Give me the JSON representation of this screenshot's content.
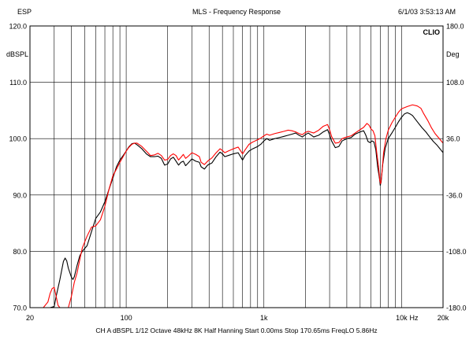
{
  "header": {
    "left": "ESP",
    "title": "MLS - Frequency Response",
    "timestamp": "6/1/03 3:53:13 AM"
  },
  "footer": {
    "settings": "CH A   dBSPL   1/12 Octave   48kHz   8K   Half Hanning   Start 0.00ms   Stop 170.65ms   FreqLO 5.86Hz"
  },
  "chart_data": {
    "type": "line",
    "xscale": "log",
    "xlim": [
      20,
      20000
    ],
    "ylim": [
      70,
      120
    ],
    "y2lim": [
      -180,
      180
    ],
    "grid": true,
    "brand": "CLIO",
    "ylabel": "dBSPL",
    "y2label": "Deg",
    "xunit": "Hz",
    "x_tick_labels": [
      {
        "value": 20,
        "label": "20"
      },
      {
        "value": 100,
        "label": "100"
      },
      {
        "value": 1000,
        "label": "1k"
      },
      {
        "value": 10000,
        "label": "10k"
      },
      {
        "value": 20000,
        "label": "20k"
      }
    ],
    "y_tick_labels": [
      {
        "value": 120,
        "label": "120.0"
      },
      {
        "value": 110,
        "label": "110.0"
      },
      {
        "value": 100,
        "label": "100.0"
      },
      {
        "value": 90,
        "label": "90.0"
      },
      {
        "value": 80,
        "label": "80.0"
      },
      {
        "value": 70,
        "label": "70.0"
      }
    ],
    "y2_tick_labels": [
      {
        "value": 180,
        "label": "180.0"
      },
      {
        "value": 108,
        "label": "108.0"
      },
      {
        "value": 36,
        "label": "36.0"
      },
      {
        "value": -36,
        "label": "-36.0"
      },
      {
        "value": -108,
        "label": "-108.0"
      },
      {
        "value": -180,
        "label": "-180.0"
      }
    ],
    "series": [
      {
        "color": "#000000",
        "points": [
          [
            20,
            70
          ],
          [
            28,
            70
          ],
          [
            30,
            70.2
          ],
          [
            31,
            72
          ],
          [
            33,
            75
          ],
          [
            35,
            78.2
          ],
          [
            36,
            78.8
          ],
          [
            37,
            78.3
          ],
          [
            38,
            77
          ],
          [
            40,
            75.4
          ],
          [
            41,
            75
          ],
          [
            42,
            75.5
          ],
          [
            44,
            77.5
          ],
          [
            46,
            79.2
          ],
          [
            48,
            80
          ],
          [
            52,
            81
          ],
          [
            56,
            83.5
          ],
          [
            60,
            85.8
          ],
          [
            65,
            87
          ],
          [
            70,
            88.8
          ],
          [
            75,
            91
          ],
          [
            80,
            93
          ],
          [
            85,
            95
          ],
          [
            90,
            96.2
          ],
          [
            95,
            97
          ],
          [
            100,
            97.8
          ],
          [
            105,
            98.6
          ],
          [
            110,
            99.1
          ],
          [
            115,
            99.2
          ],
          [
            120,
            98.9
          ],
          [
            130,
            98.2
          ],
          [
            140,
            97.3
          ],
          [
            150,
            96.8
          ],
          [
            160,
            96.8
          ],
          [
            170,
            96.9
          ],
          [
            180,
            96.5
          ],
          [
            190,
            95.3
          ],
          [
            200,
            95.5
          ],
          [
            210,
            96.4
          ],
          [
            220,
            96.7
          ],
          [
            230,
            96.0
          ],
          [
            240,
            95.3
          ],
          [
            250,
            95.8
          ],
          [
            260,
            96.0
          ],
          [
            270,
            95.2
          ],
          [
            280,
            95.6
          ],
          [
            300,
            96.4
          ],
          [
            320,
            96.0
          ],
          [
            340,
            95.8
          ],
          [
            350,
            95.0
          ],
          [
            370,
            94.6
          ],
          [
            390,
            95.3
          ],
          [
            420,
            95.7
          ],
          [
            450,
            96.8
          ],
          [
            480,
            97.6
          ],
          [
            500,
            97.3
          ],
          [
            520,
            96.8
          ],
          [
            550,
            97.0
          ],
          [
            600,
            97.3
          ],
          [
            650,
            97.5
          ],
          [
            700,
            96.2
          ],
          [
            730,
            97.0
          ],
          [
            780,
            97.8
          ],
          [
            830,
            98.2
          ],
          [
            900,
            98.6
          ],
          [
            950,
            99.0
          ],
          [
            1000,
            99.6
          ],
          [
            1050,
            100.0
          ],
          [
            1100,
            99.7
          ],
          [
            1200,
            100.0
          ],
          [
            1300,
            100.2
          ],
          [
            1400,
            100.4
          ],
          [
            1500,
            100.6
          ],
          [
            1600,
            100.8
          ],
          [
            1700,
            101.0
          ],
          [
            1800,
            100.6
          ],
          [
            1900,
            100.3
          ],
          [
            2000,
            100.7
          ],
          [
            2100,
            101.0
          ],
          [
            2300,
            100.3
          ],
          [
            2500,
            100.6
          ],
          [
            2700,
            101.2
          ],
          [
            2900,
            101.6
          ],
          [
            3000,
            100.7
          ],
          [
            3100,
            99.6
          ],
          [
            3300,
            98.4
          ],
          [
            3500,
            98.6
          ],
          [
            3700,
            99.6
          ],
          [
            4000,
            100.0
          ],
          [
            4300,
            100.2
          ],
          [
            4600,
            100.8
          ],
          [
            5000,
            101.2
          ],
          [
            5300,
            101.4
          ],
          [
            5500,
            100.6
          ],
          [
            5700,
            99.5
          ],
          [
            5900,
            99.3
          ],
          [
            6100,
            99.6
          ],
          [
            6300,
            99.4
          ],
          [
            6500,
            98.0
          ],
          [
            6700,
            95.0
          ],
          [
            6900,
            93.0
          ],
          [
            7000,
            91.7
          ],
          [
            7100,
            92.3
          ],
          [
            7300,
            95.5
          ],
          [
            7600,
            98.3
          ],
          [
            8000,
            100.0
          ],
          [
            8500,
            101.0
          ],
          [
            9000,
            102.0
          ],
          [
            9500,
            103.0
          ],
          [
            10000,
            103.8
          ],
          [
            10500,
            104.4
          ],
          [
            11000,
            104.6
          ],
          [
            11500,
            104.4
          ],
          [
            12000,
            104.1
          ],
          [
            13000,
            103.0
          ],
          [
            14000,
            102.0
          ],
          [
            15000,
            101.2
          ],
          [
            16000,
            100.3
          ],
          [
            17000,
            99.5
          ],
          [
            18000,
            98.9
          ],
          [
            19000,
            98.2
          ],
          [
            20000,
            97.5
          ]
        ]
      },
      {
        "color": "#ff0000",
        "points": [
          [
            20,
            70
          ],
          [
            25,
            70
          ],
          [
            27,
            71
          ],
          [
            28,
            72.5
          ],
          [
            29,
            73.4
          ],
          [
            30,
            73.6
          ],
          [
            31,
            72
          ],
          [
            32,
            70.4
          ],
          [
            33,
            70
          ],
          [
            38,
            70
          ],
          [
            40,
            72
          ],
          [
            42,
            74.5
          ],
          [
            44,
            76.2
          ],
          [
            46,
            78.5
          ],
          [
            48,
            80.6
          ],
          [
            52,
            82.7
          ],
          [
            56,
            84.3
          ],
          [
            60,
            84.5
          ],
          [
            65,
            85.6
          ],
          [
            70,
            88.0
          ],
          [
            75,
            91.0
          ],
          [
            80,
            93.4
          ],
          [
            85,
            94.6
          ],
          [
            90,
            95.8
          ],
          [
            95,
            96.8
          ],
          [
            100,
            97.8
          ],
          [
            105,
            98.5
          ],
          [
            110,
            99.0
          ],
          [
            115,
            99.2
          ],
          [
            120,
            99.2
          ],
          [
            130,
            98.6
          ],
          [
            140,
            97.8
          ],
          [
            150,
            97.0
          ],
          [
            160,
            97.1
          ],
          [
            170,
            97.4
          ],
          [
            180,
            97.0
          ],
          [
            190,
            96.2
          ],
          [
            200,
            96.3
          ],
          [
            210,
            97.0
          ],
          [
            220,
            97.3
          ],
          [
            230,
            97.0
          ],
          [
            240,
            96.2
          ],
          [
            250,
            96.7
          ],
          [
            260,
            97.2
          ],
          [
            270,
            96.5
          ],
          [
            280,
            96.8
          ],
          [
            300,
            97.5
          ],
          [
            320,
            97.2
          ],
          [
            340,
            96.8
          ],
          [
            350,
            95.8
          ],
          [
            370,
            95.4
          ],
          [
            390,
            96.0
          ],
          [
            420,
            96.6
          ],
          [
            450,
            97.5
          ],
          [
            480,
            98.2
          ],
          [
            500,
            97.9
          ],
          [
            520,
            97.5
          ],
          [
            550,
            97.8
          ],
          [
            600,
            98.2
          ],
          [
            650,
            98.5
          ],
          [
            700,
            97.3
          ],
          [
            730,
            98.0
          ],
          [
            780,
            99.0
          ],
          [
            830,
            99.4
          ],
          [
            900,
            99.8
          ],
          [
            950,
            100.1
          ],
          [
            1000,
            100.5
          ],
          [
            1050,
            100.8
          ],
          [
            1100,
            100.6
          ],
          [
            1200,
            100.9
          ],
          [
            1300,
            101.1
          ],
          [
            1400,
            101.3
          ],
          [
            1500,
            101.5
          ],
          [
            1600,
            101.4
          ],
          [
            1700,
            101.2
          ],
          [
            1800,
            100.9
          ],
          [
            1900,
            100.7
          ],
          [
            2000,
            101.1
          ],
          [
            2100,
            101.3
          ],
          [
            2300,
            101.0
          ],
          [
            2500,
            101.5
          ],
          [
            2700,
            102.2
          ],
          [
            2900,
            102.5
          ],
          [
            3000,
            101.6
          ],
          [
            3100,
            100.4
          ],
          [
            3300,
            99.2
          ],
          [
            3500,
            99.3
          ],
          [
            3700,
            100.0
          ],
          [
            4000,
            100.3
          ],
          [
            4300,
            100.5
          ],
          [
            4600,
            101.0
          ],
          [
            5000,
            101.6
          ],
          [
            5300,
            102.0
          ],
          [
            5600,
            102.7
          ],
          [
            5800,
            102.4
          ],
          [
            6000,
            101.7
          ],
          [
            6200,
            101.4
          ],
          [
            6400,
            100.5
          ],
          [
            6600,
            97.5
          ],
          [
            6800,
            95.0
          ],
          [
            6950,
            92.5
          ],
          [
            7050,
            92.0
          ],
          [
            7200,
            94.0
          ],
          [
            7400,
            97.5
          ],
          [
            7700,
            100.0
          ],
          [
            8000,
            101.5
          ],
          [
            8500,
            102.8
          ],
          [
            9000,
            103.8
          ],
          [
            9500,
            104.7
          ],
          [
            10000,
            105.3
          ],
          [
            11000,
            105.7
          ],
          [
            12000,
            106.0
          ],
          [
            13000,
            105.8
          ],
          [
            13800,
            105.4
          ],
          [
            14500,
            104.4
          ],
          [
            15500,
            103.2
          ],
          [
            16500,
            101.9
          ],
          [
            17500,
            100.9
          ],
          [
            18500,
            100.2
          ],
          [
            20000,
            99.2
          ]
        ]
      }
    ]
  }
}
